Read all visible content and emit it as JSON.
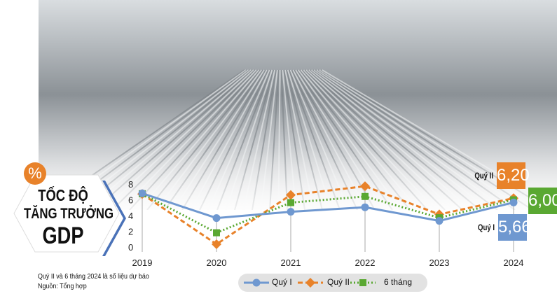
{
  "header": {
    "percent_symbol": "%",
    "title_line1": "TỐC ĐỘ",
    "title_line2": "TĂNG TRƯỞNG",
    "title_line3": "GDP"
  },
  "notes": {
    "line1": "Quý II và 6 tháng 2024 là số liệu dự báo",
    "line2": "Nguồn: Tổng hợp"
  },
  "callouts": {
    "q2": {
      "label": "Quý II",
      "value": "6,20",
      "color": "#e8822a"
    },
    "six": {
      "value": "6,00",
      "color": "#5aa832"
    },
    "q1": {
      "label": "Quý I",
      "value": "5,66",
      "color": "#6f98d0"
    }
  },
  "chart_data": {
    "type": "line",
    "categories": [
      "2019",
      "2020",
      "2021",
      "2022",
      "2023",
      "2024"
    ],
    "ylim": [
      0,
      8
    ],
    "yticks": [
      "0",
      "2",
      "4",
      "6",
      "8"
    ],
    "grid": false,
    "legend": "bottom",
    "series": [
      {
        "name": "Quý I",
        "values": [
          6.82,
          3.68,
          4.48,
          5.05,
          3.32,
          5.66
        ],
        "color": "#6f98d0",
        "style": "solid",
        "marker": "circle"
      },
      {
        "name": "Quý II",
        "values": [
          6.73,
          0.36,
          6.61,
          7.72,
          4.14,
          6.2
        ],
        "color": "#e8822a",
        "style": "dashed",
        "marker": "diamond"
      },
      {
        "name": "6 tháng",
        "values": [
          6.77,
          1.81,
          5.64,
          6.42,
          3.72,
          6.0
        ],
        "color": "#5aa832",
        "style": "dotted",
        "marker": "square"
      }
    ]
  }
}
